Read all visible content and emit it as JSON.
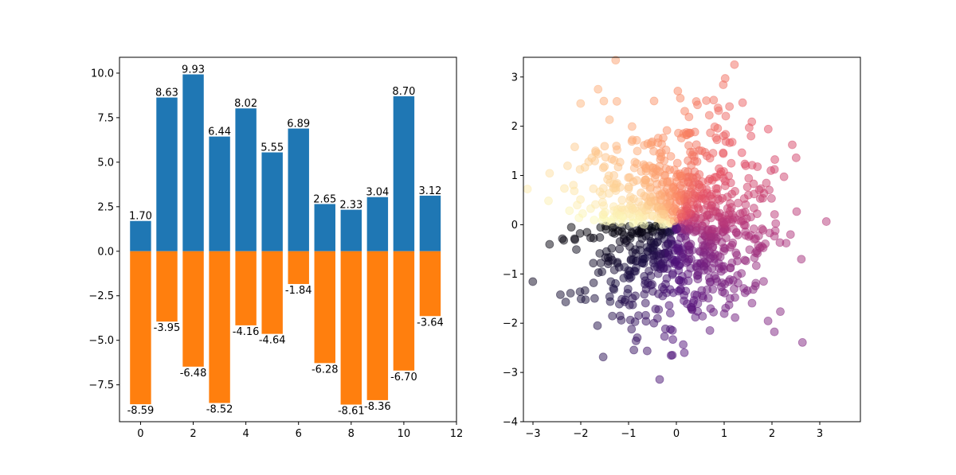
{
  "chart_data": [
    {
      "type": "bar",
      "x": [
        0,
        1,
        2,
        3,
        4,
        5,
        6,
        7,
        8,
        9,
        10,
        11
      ],
      "series": [
        {
          "values": [
            1.7,
            8.63,
            9.93,
            6.44,
            8.02,
            5.55,
            6.89,
            2.65,
            2.33,
            3.04,
            8.7,
            3.12
          ],
          "color": "#1f77b4"
        },
        {
          "values": [
            -8.59,
            -3.95,
            -6.48,
            -8.52,
            -4.16,
            -4.64,
            -1.84,
            -6.28,
            -8.61,
            -8.36,
            -6.7,
            -3.64
          ],
          "color": "#ff7f0e"
        }
      ],
      "data_labels": {
        "pos": [
          "1.70",
          "8.63",
          "9.93",
          "6.44",
          "8.02",
          "5.55",
          "6.89",
          "2.65",
          "2.33",
          "3.04",
          "8.70",
          "3.12"
        ],
        "neg": [
          "-8.59",
          "-3.95",
          "-6.48",
          "-8.52",
          "-4.16",
          "-4.64",
          "-1.84",
          "-6.28",
          "-8.61",
          "-8.36",
          "-6.70",
          "-3.64"
        ]
      },
      "xlim": [
        -0.8,
        12.0
      ],
      "ylim": [
        -9.57,
        10.89
      ],
      "xticks": [
        0,
        2,
        4,
        6,
        8,
        10,
        12
      ],
      "xtick_labels": [
        "0",
        "2",
        "4",
        "6",
        "8",
        "10",
        "12"
      ],
      "yticks": [
        -7.5,
        -5.0,
        -2.5,
        0.0,
        2.5,
        5.0,
        7.5,
        10.0
      ],
      "ytick_labels": [
        "−7.5",
        "−5.0",
        "−2.5",
        "0.0",
        "2.5",
        "5.0",
        "7.5",
        "10.0"
      ],
      "grid": false
    },
    {
      "type": "scatter",
      "n_points": 1024,
      "distribution": "standard normal (x, y)",
      "color_by": "angle arctan2(y, x)",
      "colormap": "magma",
      "alpha": 0.5,
      "xlim": [
        -3.2,
        3.85
      ],
      "ylim": [
        -4.0,
        3.4
      ],
      "xticks": [
        -3,
        -2,
        -1,
        0,
        1,
        2,
        3
      ],
      "xtick_labels": [
        "−3",
        "−2",
        "−1",
        "0",
        "1",
        "2",
        "3"
      ],
      "yticks": [
        -4,
        -3,
        -2,
        -1,
        0,
        1,
        2,
        3
      ],
      "ytick_labels": [
        "−4",
        "−3",
        "−2",
        "−1",
        "0",
        "1",
        "2",
        "3"
      ],
      "grid": false
    }
  ]
}
